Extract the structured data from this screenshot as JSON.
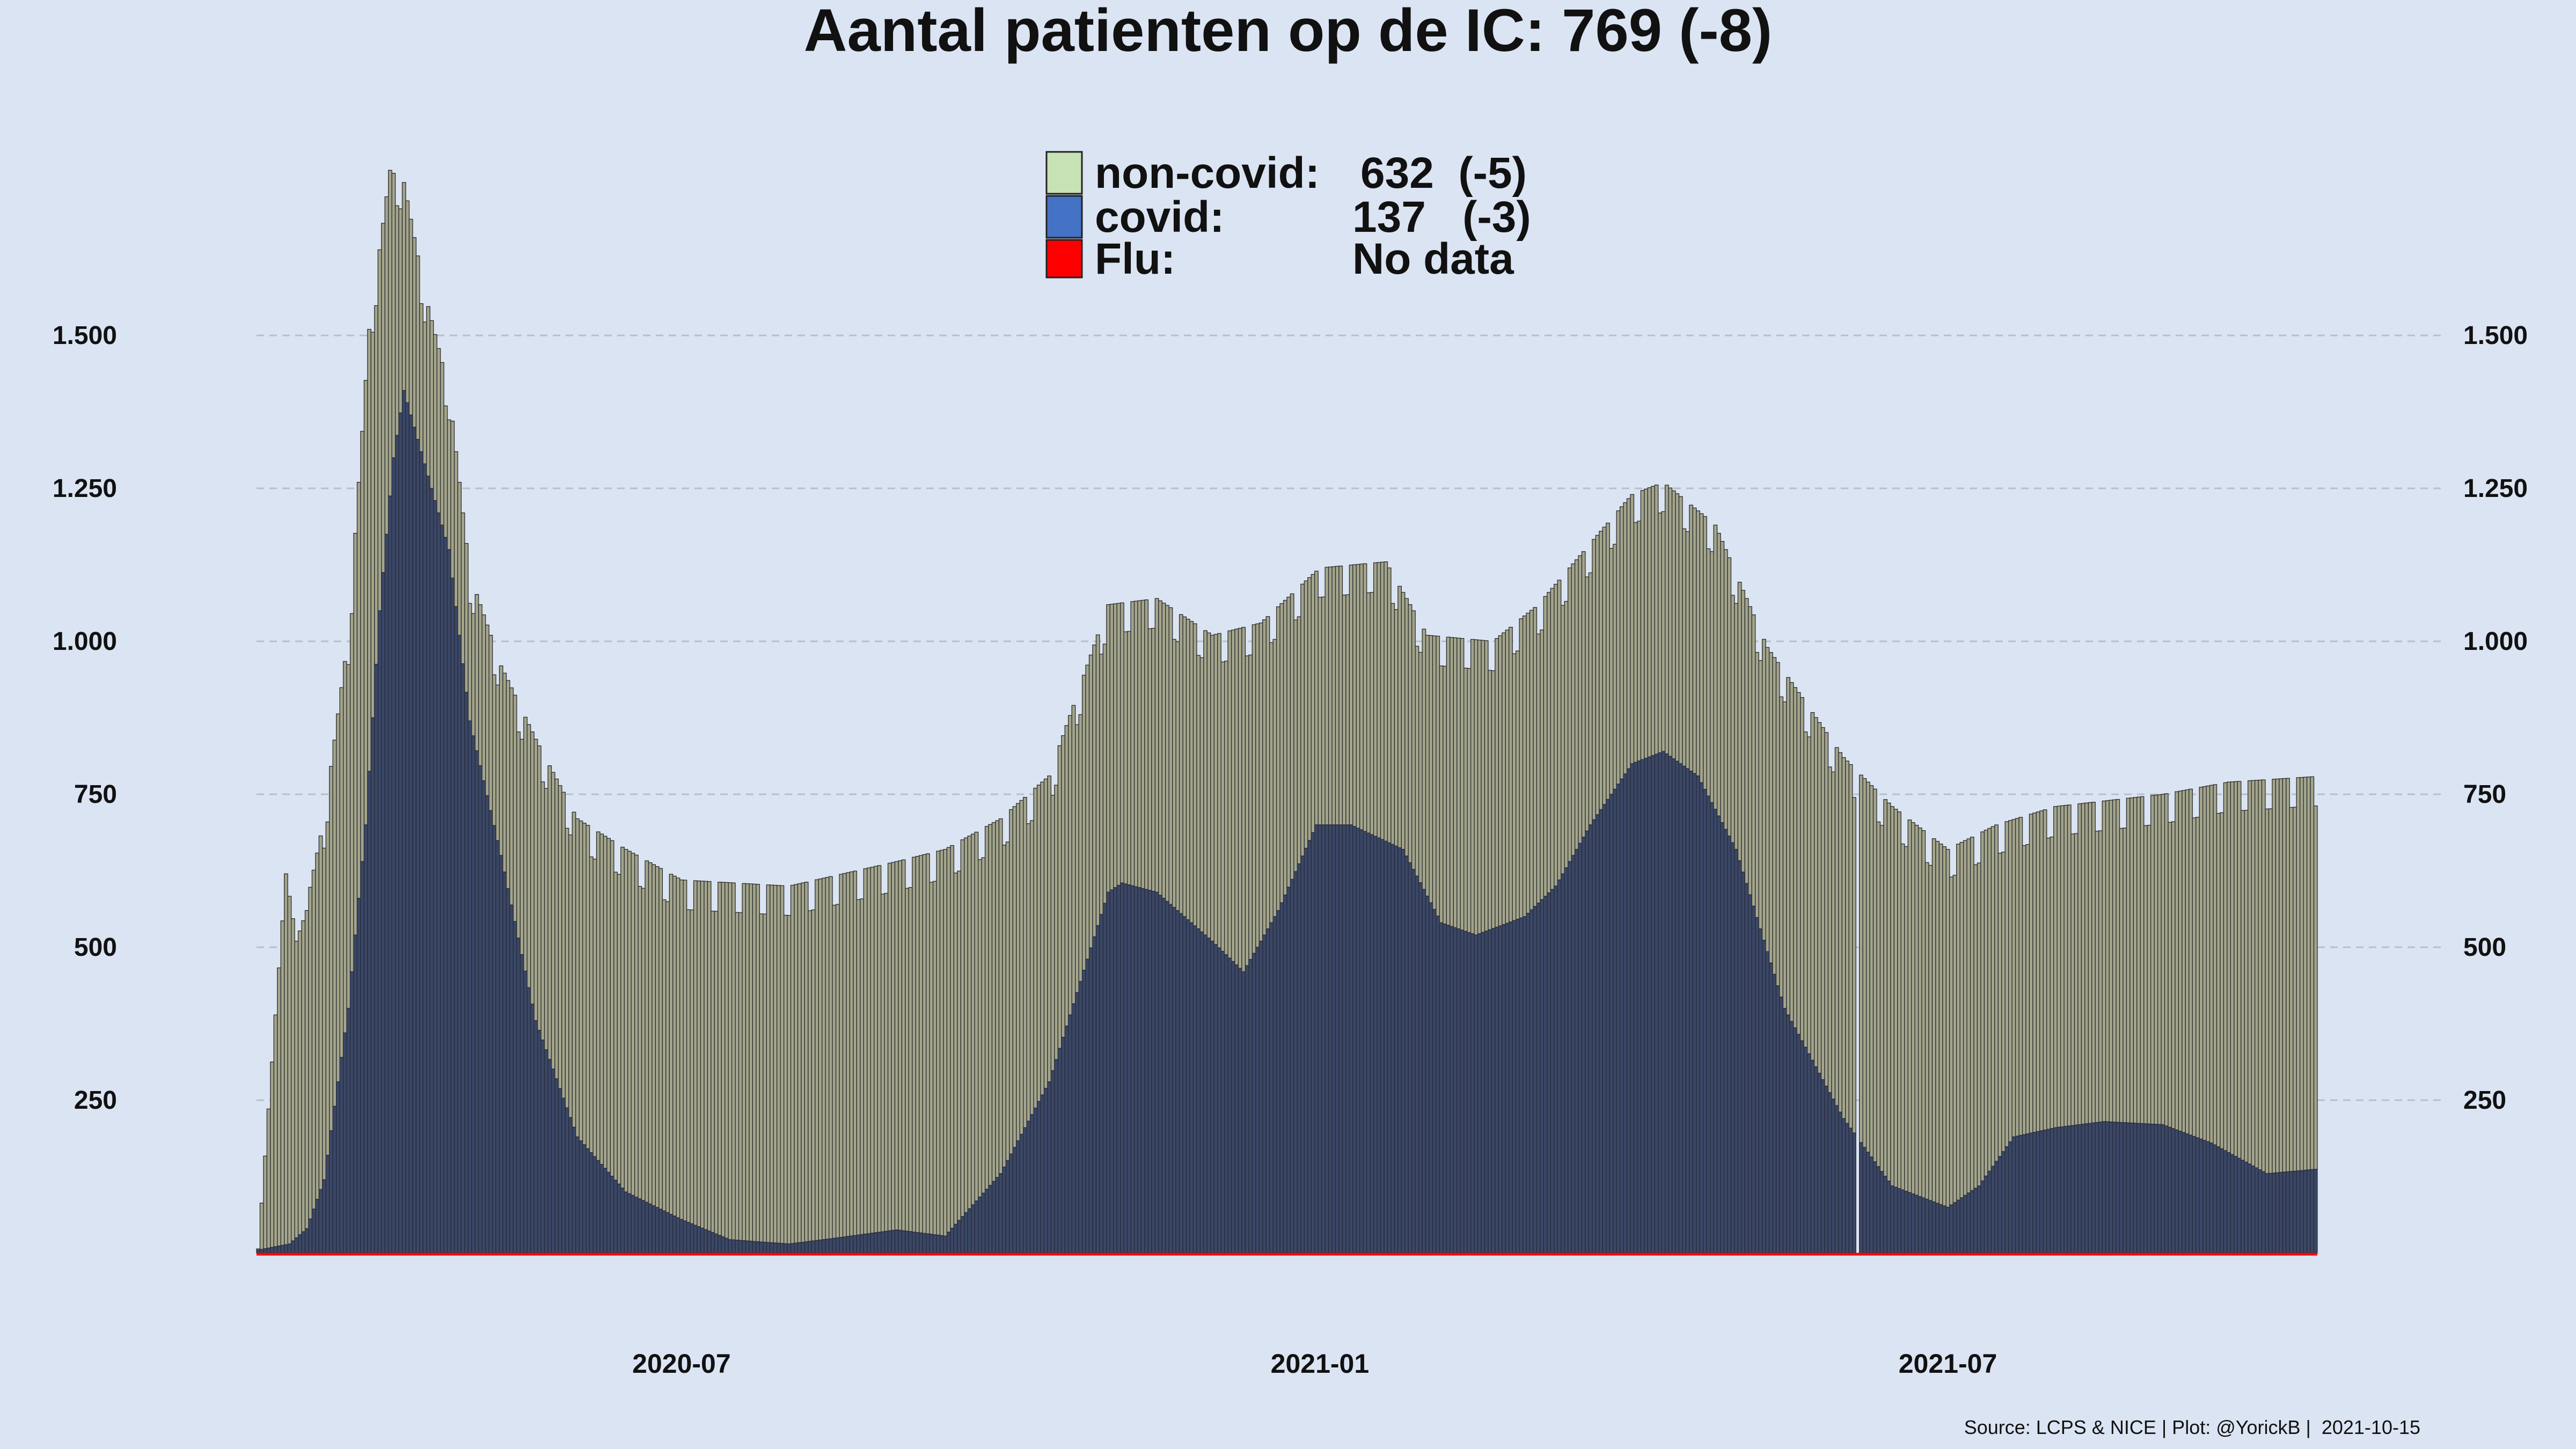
{
  "chart_data": {
    "type": "bar",
    "stacked": true,
    "title": "Aantal patienten op de IC: 769  (-8)",
    "x_start": "2020-03-01",
    "x_end": "2021-10-15",
    "x_ticks": [
      "2020-07",
      "2021-01",
      "2021-07"
    ],
    "y_ticks": [
      "250",
      "500",
      "750",
      "1.000",
      "1.250",
      "1.500"
    ],
    "y_tick_values": [
      250,
      500,
      750,
      1000,
      1250,
      1500
    ],
    "ylim": [
      0,
      1800
    ],
    "grid": "horizontal dashed",
    "legend_position": "top-center",
    "legend": [
      {
        "swatch": "#c7e2b4",
        "label": "non-covid:",
        "value": "632  (-5)"
      },
      {
        "swatch": "#4472c4",
        "label": "covid:",
        "value": "137   (-3)"
      },
      {
        "swatch": "#ff0000",
        "label": "Flu:",
        "value": "No data"
      }
    ],
    "series": [
      {
        "name": "covid",
        "color": "#3b4766",
        "points": [
          [
            "2020-03-01",
            5
          ],
          [
            "2020-03-10",
            15
          ],
          [
            "2020-03-15",
            40
          ],
          [
            "2020-03-20",
            120
          ],
          [
            "2020-03-27",
            400
          ],
          [
            "2020-04-01",
            700
          ],
          [
            "2020-04-05",
            1050
          ],
          [
            "2020-04-09",
            1300
          ],
          [
            "2020-04-12",
            1410
          ],
          [
            "2020-04-17",
            1310
          ],
          [
            "2020-04-25",
            1150
          ],
          [
            "2020-05-01",
            870
          ],
          [
            "2020-05-10",
            650
          ],
          [
            "2020-05-20",
            380
          ],
          [
            "2020-06-01",
            190
          ],
          [
            "2020-06-15",
            100
          ],
          [
            "2020-07-01",
            55
          ],
          [
            "2020-07-15",
            22
          ],
          [
            "2020-08-01",
            15
          ],
          [
            "2020-08-15",
            25
          ],
          [
            "2020-09-01",
            38
          ],
          [
            "2020-09-15",
            28
          ],
          [
            "2020-10-01",
            130
          ],
          [
            "2020-10-15",
            280
          ],
          [
            "2020-11-01",
            590
          ],
          [
            "2020-11-05",
            605
          ],
          [
            "2020-11-15",
            590
          ],
          [
            "2020-12-01",
            510
          ],
          [
            "2020-12-10",
            460
          ],
          [
            "2020-12-20",
            560
          ],
          [
            "2020-12-31",
            700
          ],
          [
            "2021-01-10",
            700
          ],
          [
            "2021-01-25",
            660
          ],
          [
            "2021-02-05",
            540
          ],
          [
            "2021-02-15",
            520
          ],
          [
            "2021-03-01",
            550
          ],
          [
            "2021-03-10",
            600
          ],
          [
            "2021-03-20",
            700
          ],
          [
            "2021-04-01",
            800
          ],
          [
            "2021-04-10",
            820
          ],
          [
            "2021-04-20",
            780
          ],
          [
            "2021-05-01",
            660
          ],
          [
            "2021-05-15",
            400
          ],
          [
            "2021-06-01",
            220
          ],
          [
            "2021-06-15",
            110
          ],
          [
            "2021-07-01",
            75
          ],
          [
            "2021-07-10",
            110
          ],
          [
            "2021-07-20",
            190
          ],
          [
            "2021-08-01",
            205
          ],
          [
            "2021-08-15",
            215
          ],
          [
            "2021-09-01",
            210
          ],
          [
            "2021-09-15",
            180
          ],
          [
            "2021-10-01",
            130
          ],
          [
            "2021-10-15",
            137
          ]
        ]
      },
      {
        "name": "totaal",
        "color": "#a3a58c",
        "points": [
          [
            "2020-03-01",
            5
          ],
          [
            "2020-03-09",
            620
          ],
          [
            "2020-03-12",
            510
          ],
          [
            "2020-03-15",
            560
          ],
          [
            "2020-03-20",
            700
          ],
          [
            "2020-03-27",
            1000
          ],
          [
            "2020-04-02",
            1500
          ],
          [
            "2020-04-08",
            1760
          ],
          [
            "2020-04-12",
            1740
          ],
          [
            "2020-04-18",
            1560
          ],
          [
            "2020-04-25",
            1400
          ],
          [
            "2020-05-01",
            1100
          ],
          [
            "2020-05-10",
            950
          ],
          [
            "2020-05-20",
            830
          ],
          [
            "2020-06-01",
            700
          ],
          [
            "2020-06-15",
            650
          ],
          [
            "2020-07-01",
            600
          ],
          [
            "2020-08-01",
            590
          ],
          [
            "2020-09-01",
            630
          ],
          [
            "2020-09-15",
            650
          ],
          [
            "2020-10-01",
            700
          ],
          [
            "2020-10-15",
            770
          ],
          [
            "2020-11-01",
            1050
          ],
          [
            "2020-11-15",
            1060
          ],
          [
            "2020-12-01",
            1000
          ],
          [
            "2020-12-15",
            1020
          ],
          [
            "2021-01-01",
            1110
          ],
          [
            "2021-01-20",
            1120
          ],
          [
            "2021-02-01",
            1000
          ],
          [
            "2021-02-20",
            990
          ],
          [
            "2021-03-05",
            1050
          ],
          [
            "2021-03-20",
            1150
          ],
          [
            "2021-04-01",
            1230
          ],
          [
            "2021-04-10",
            1250
          ],
          [
            "2021-04-25",
            1180
          ],
          [
            "2021-05-10",
            980
          ],
          [
            "2021-06-01",
            800
          ],
          [
            "2021-06-15",
            720
          ],
          [
            "2021-07-01",
            650
          ],
          [
            "2021-07-15",
            690
          ],
          [
            "2021-08-01",
            720
          ],
          [
            "2021-09-01",
            740
          ],
          [
            "2021-09-20",
            760
          ],
          [
            "2021-10-15",
            769
          ]
        ]
      },
      {
        "name": "Flu",
        "color": "#ff0000",
        "value": 0
      }
    ],
    "gap_date": "2021-06-05",
    "source": "Source: LCPS & NICE | Plot: @YorickB |  2021-10-15"
  }
}
